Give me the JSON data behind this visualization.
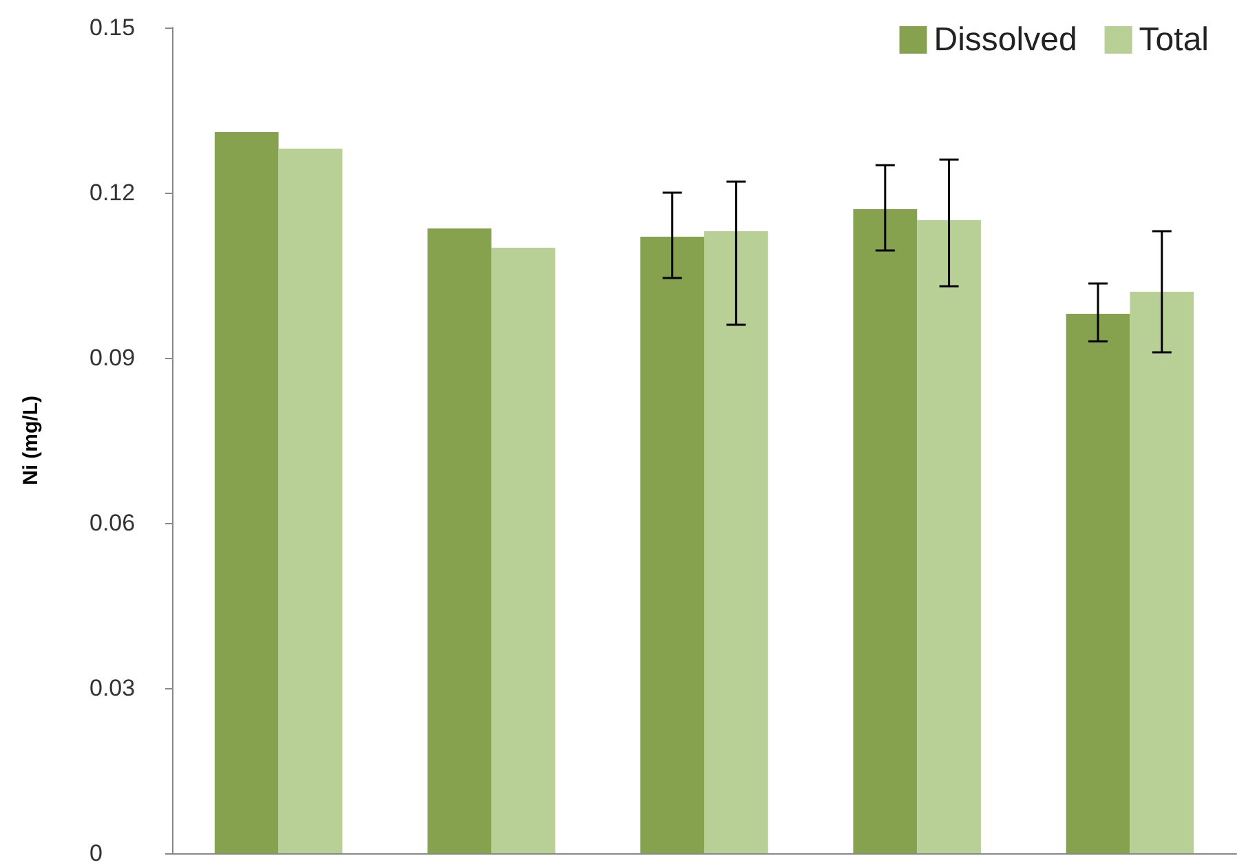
{
  "chart_data": {
    "type": "bar",
    "ylabel": "Ni (mg/L)",
    "categories": [
      null,
      null,
      null,
      null,
      null
    ],
    "series": [
      {
        "name": "Dissolved",
        "color": "#86a24f",
        "values": [
          0.131,
          0.1135,
          0.112,
          0.117,
          0.098
        ],
        "errors": [
          null,
          null,
          [
            0.1045,
            0.12
          ],
          [
            0.1095,
            0.125
          ],
          [
            0.093,
            0.1035
          ]
        ]
      },
      {
        "name": "Total",
        "color": "#b8cf96",
        "values": [
          0.128,
          0.11,
          0.113,
          0.115,
          0.102
        ],
        "errors": [
          null,
          null,
          [
            0.096,
            0.122
          ],
          [
            0.103,
            0.126
          ],
          [
            0.091,
            0.113
          ]
        ]
      }
    ],
    "ylim": [
      0,
      0.15
    ],
    "yticks": [
      0,
      0.03,
      0.06,
      0.09,
      0.12,
      0.15
    ],
    "grid": false,
    "legend": "top right"
  }
}
